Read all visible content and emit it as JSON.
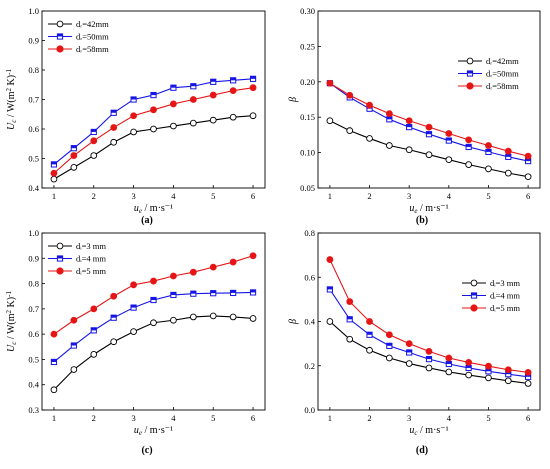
{
  "chart_data": [
    {
      "type": "line",
      "panel_label": "(a)",
      "xlabel_sym": "u",
      "xlabel_sub": "e",
      "xlabel_unit": " / m·s⁻¹",
      "ylabel": "U_c / W(m² K)⁻¹",
      "ylabel_sym": "U",
      "ylabel_sub": "c",
      "ylabel_unit": " / W(m",
      "ylabel_sup1": "2",
      "ylabel_mid": " K)",
      "ylabel_sup2": "-1",
      "xlim": [
        0.7,
        6.3
      ],
      "ylim": [
        0.4,
        1.0
      ],
      "xticks": [
        "1",
        "2",
        "3",
        "4",
        "5",
        "6"
      ],
      "yticks": [
        "0.4",
        "0.5",
        "0.6",
        "0.7",
        "0.8",
        "0.9",
        "1.0"
      ],
      "legend_placement": "top-left",
      "x": [
        1,
        1.5,
        2,
        2.5,
        3,
        3.5,
        4,
        4.5,
        5,
        5.5,
        6
      ],
      "series": [
        {
          "name": "dᵣ=42mm",
          "marker": "circle",
          "color": "#000000",
          "values": [
            0.43,
            0.47,
            0.51,
            0.555,
            0.59,
            0.6,
            0.61,
            0.62,
            0.63,
            0.64,
            0.645
          ]
        },
        {
          "name": "dᵣ=50mm",
          "marker": "square",
          "color": "#1515e6",
          "values": [
            0.48,
            0.535,
            0.59,
            0.655,
            0.7,
            0.715,
            0.74,
            0.745,
            0.76,
            0.765,
            0.77
          ]
        },
        {
          "name": "dᵣ=58mm",
          "marker": "circle",
          "color": "#e61515",
          "values": [
            0.45,
            0.51,
            0.56,
            0.605,
            0.645,
            0.665,
            0.685,
            0.7,
            0.715,
            0.73,
            0.74
          ]
        }
      ]
    },
    {
      "type": "line",
      "panel_label": "(b)",
      "xlabel_sym": "u",
      "xlabel_sub": "e",
      "xlabel_unit": " / m·s⁻¹",
      "ylabel": "β",
      "ylabel_sym": "β",
      "xlim": [
        0.7,
        6.3
      ],
      "ylim": [
        0.05,
        0.3
      ],
      "xticks": [
        "1",
        "2",
        "3",
        "4",
        "5",
        "6"
      ],
      "yticks": [
        "0.05",
        "0.10",
        "0.15",
        "0.20",
        "0.25",
        "0.30"
      ],
      "legend_placement": "right",
      "x": [
        1,
        1.5,
        2,
        2.5,
        3,
        3.5,
        4,
        4.5,
        5,
        5.5,
        6
      ],
      "series": [
        {
          "name": "dᵣ=42mm",
          "marker": "circle",
          "color": "#000000",
          "values": [
            0.145,
            0.131,
            0.12,
            0.11,
            0.104,
            0.097,
            0.09,
            0.083,
            0.077,
            0.071,
            0.066
          ]
        },
        {
          "name": "dᵣ=50mm",
          "marker": "square",
          "color": "#1515e6",
          "values": [
            0.198,
            0.178,
            0.162,
            0.147,
            0.136,
            0.126,
            0.117,
            0.108,
            0.101,
            0.094,
            0.088
          ]
        },
        {
          "name": "dᵣ=58mm",
          "marker": "circle",
          "color": "#e61515",
          "values": [
            0.198,
            0.181,
            0.167,
            0.155,
            0.145,
            0.136,
            0.127,
            0.118,
            0.11,
            0.102,
            0.095
          ]
        }
      ]
    },
    {
      "type": "line",
      "panel_label": "(c)",
      "xlabel_sym": "u",
      "xlabel_sub": "e",
      "xlabel_unit": " / m·s⁻¹",
      "ylabel": "U_c / W(m² K)⁻¹",
      "ylabel_sym": "U",
      "ylabel_sub": "c",
      "ylabel_unit": " / W(m",
      "ylabel_sup1": "2",
      "ylabel_mid": " K)",
      "ylabel_sup2": "-1",
      "xlim": [
        0.7,
        6.3
      ],
      "ylim": [
        0.3,
        1.0
      ],
      "xticks": [
        "1",
        "2",
        "3",
        "4",
        "5",
        "6"
      ],
      "yticks": [
        "0.3",
        "0.4",
        "0.5",
        "0.6",
        "0.7",
        "0.8",
        "0.9",
        "1.0"
      ],
      "legend_placement": "top-left",
      "x": [
        1,
        1.5,
        2,
        2.5,
        3,
        3.5,
        4,
        4.5,
        5,
        5.5,
        6
      ],
      "series": [
        {
          "name": "dᵢ=3 mm",
          "marker": "circle",
          "color": "#000000",
          "values": [
            0.38,
            0.46,
            0.52,
            0.57,
            0.61,
            0.645,
            0.655,
            0.668,
            0.672,
            0.668,
            0.662
          ]
        },
        {
          "name": "dᵢ=4 mm",
          "marker": "square",
          "color": "#1515e6",
          "values": [
            0.49,
            0.555,
            0.615,
            0.665,
            0.705,
            0.735,
            0.755,
            0.76,
            0.762,
            0.763,
            0.765
          ]
        },
        {
          "name": "dᵢ=5 mm",
          "marker": "circle",
          "color": "#e61515",
          "values": [
            0.6,
            0.655,
            0.7,
            0.75,
            0.795,
            0.81,
            0.83,
            0.845,
            0.865,
            0.885,
            0.91
          ]
        }
      ]
    },
    {
      "type": "line",
      "panel_label": "(d)",
      "xlabel_sym": "u",
      "xlabel_sub": "c",
      "xlabel_unit": " / m·s⁻¹",
      "ylabel": "β",
      "ylabel_sym": "β",
      "xlim": [
        0.7,
        6.3
      ],
      "ylim": [
        0.0,
        0.8
      ],
      "xticks": [
        "1",
        "2",
        "3",
        "4",
        "5",
        "6"
      ],
      "yticks": [
        "0.0",
        "0.2",
        "0.4",
        "0.6",
        "0.8"
      ],
      "legend_placement": "right",
      "x": [
        1,
        1.5,
        2,
        2.5,
        3,
        3.5,
        4,
        4.5,
        5,
        5.5,
        6
      ],
      "series": [
        {
          "name": "dᵢ=3 mm",
          "marker": "circle",
          "color": "#000000",
          "values": [
            0.4,
            0.32,
            0.27,
            0.235,
            0.21,
            0.19,
            0.172,
            0.158,
            0.145,
            0.132,
            0.12
          ]
        },
        {
          "name": "dᵢ=4 mm",
          "marker": "square",
          "color": "#1515e6",
          "values": [
            0.545,
            0.41,
            0.34,
            0.29,
            0.26,
            0.23,
            0.208,
            0.19,
            0.175,
            0.162,
            0.15
          ]
        },
        {
          "name": "dᵢ=5 mm",
          "marker": "circle",
          "color": "#e61515",
          "values": [
            0.68,
            0.49,
            0.4,
            0.34,
            0.3,
            0.265,
            0.235,
            0.215,
            0.198,
            0.182,
            0.17
          ]
        }
      ]
    }
  ]
}
